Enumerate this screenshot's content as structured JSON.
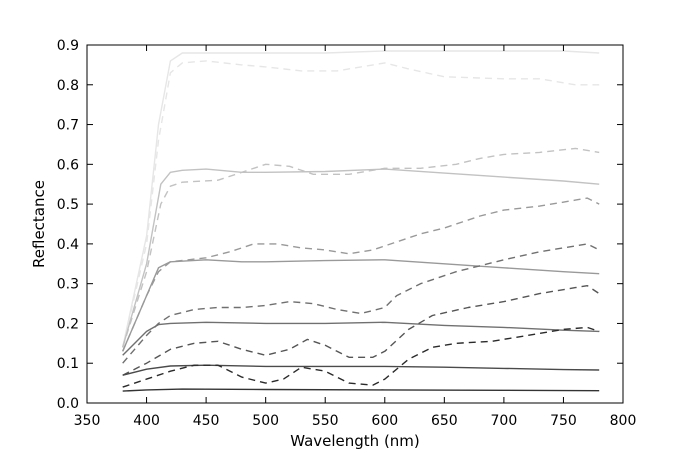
{
  "chart_data": {
    "type": "line",
    "title": "",
    "xlabel": "Wavelength (nm)",
    "ylabel": "Reflectance",
    "xlim": [
      350,
      800
    ],
    "ylim": [
      0.0,
      0.9
    ],
    "xticks": [
      350,
      400,
      450,
      500,
      550,
      600,
      650,
      700,
      750,
      800
    ],
    "yticks": [
      0.0,
      0.1,
      0.2,
      0.3,
      0.4,
      0.5,
      0.6,
      0.7,
      0.8,
      0.9
    ],
    "xtick_labels": [
      "350",
      "400",
      "450",
      "500",
      "550",
      "600",
      "650",
      "700",
      "750",
      "800"
    ],
    "ytick_labels": [
      "0.0",
      "0.1",
      "0.2",
      "0.3",
      "0.4",
      "0.5",
      "0.6",
      "0.7",
      "0.8",
      "0.9"
    ],
    "grid": false,
    "legend": "none",
    "series": [
      {
        "style": "solid",
        "color": "#e6e6e6",
        "points": [
          [
            380,
            0.14
          ],
          [
            400,
            0.42
          ],
          [
            410,
            0.7
          ],
          [
            420,
            0.86
          ],
          [
            430,
            0.88
          ],
          [
            450,
            0.88
          ],
          [
            500,
            0.88
          ],
          [
            550,
            0.88
          ],
          [
            600,
            0.885
          ],
          [
            650,
            0.885
          ],
          [
            700,
            0.885
          ],
          [
            750,
            0.885
          ],
          [
            780,
            0.88
          ]
        ]
      },
      {
        "style": "dashed",
        "color": "#e6e6e6",
        "points": [
          [
            380,
            0.14
          ],
          [
            400,
            0.4
          ],
          [
            410,
            0.66
          ],
          [
            420,
            0.83
          ],
          [
            430,
            0.855
          ],
          [
            450,
            0.86
          ],
          [
            480,
            0.85
          ],
          [
            500,
            0.845
          ],
          [
            530,
            0.835
          ],
          [
            560,
            0.835
          ],
          [
            580,
            0.845
          ],
          [
            600,
            0.855
          ],
          [
            620,
            0.84
          ],
          [
            650,
            0.82
          ],
          [
            700,
            0.815
          ],
          [
            730,
            0.815
          ],
          [
            760,
            0.8
          ],
          [
            780,
            0.8
          ]
        ]
      },
      {
        "style": "solid",
        "color": "#c2c2c2",
        "points": [
          [
            380,
            0.14
          ],
          [
            400,
            0.35
          ],
          [
            412,
            0.55
          ],
          [
            420,
            0.58
          ],
          [
            430,
            0.585
          ],
          [
            450,
            0.588
          ],
          [
            480,
            0.58
          ],
          [
            500,
            0.58
          ],
          [
            550,
            0.582
          ],
          [
            600,
            0.588
          ],
          [
            650,
            0.578
          ],
          [
            700,
            0.568
          ],
          [
            750,
            0.558
          ],
          [
            780,
            0.55
          ]
        ]
      },
      {
        "style": "dashed",
        "color": "#c2c2c2",
        "points": [
          [
            380,
            0.14
          ],
          [
            400,
            0.33
          ],
          [
            412,
            0.5
          ],
          [
            420,
            0.545
          ],
          [
            430,
            0.555
          ],
          [
            460,
            0.56
          ],
          [
            480,
            0.58
          ],
          [
            500,
            0.6
          ],
          [
            520,
            0.595
          ],
          [
            540,
            0.575
          ],
          [
            570,
            0.575
          ],
          [
            600,
            0.59
          ],
          [
            630,
            0.59
          ],
          [
            660,
            0.6
          ],
          [
            680,
            0.615
          ],
          [
            700,
            0.625
          ],
          [
            730,
            0.63
          ],
          [
            760,
            0.64
          ],
          [
            780,
            0.63
          ]
        ]
      },
      {
        "style": "solid",
        "color": "#999999",
        "points": [
          [
            380,
            0.13
          ],
          [
            400,
            0.27
          ],
          [
            410,
            0.34
          ],
          [
            420,
            0.355
          ],
          [
            450,
            0.36
          ],
          [
            480,
            0.355
          ],
          [
            500,
            0.355
          ],
          [
            550,
            0.358
          ],
          [
            600,
            0.36
          ],
          [
            650,
            0.35
          ],
          [
            700,
            0.34
          ],
          [
            750,
            0.33
          ],
          [
            780,
            0.325
          ]
        ]
      },
      {
        "style": "dashed",
        "color": "#999999",
        "points": [
          [
            380,
            0.13
          ],
          [
            400,
            0.27
          ],
          [
            410,
            0.33
          ],
          [
            420,
            0.355
          ],
          [
            450,
            0.365
          ],
          [
            470,
            0.38
          ],
          [
            490,
            0.4
          ],
          [
            510,
            0.4
          ],
          [
            530,
            0.39
          ],
          [
            550,
            0.385
          ],
          [
            570,
            0.375
          ],
          [
            590,
            0.385
          ],
          [
            610,
            0.405
          ],
          [
            630,
            0.425
          ],
          [
            650,
            0.44
          ],
          [
            680,
            0.47
          ],
          [
            700,
            0.485
          ],
          [
            730,
            0.495
          ],
          [
            760,
            0.51
          ],
          [
            770,
            0.515
          ],
          [
            780,
            0.5
          ]
        ]
      },
      {
        "style": "solid",
        "color": "#707070",
        "points": [
          [
            380,
            0.12
          ],
          [
            400,
            0.18
          ],
          [
            410,
            0.197
          ],
          [
            420,
            0.2
          ],
          [
            450,
            0.203
          ],
          [
            500,
            0.2
          ],
          [
            550,
            0.2
          ],
          [
            600,
            0.203
          ],
          [
            650,
            0.195
          ],
          [
            700,
            0.19
          ],
          [
            750,
            0.183
          ],
          [
            780,
            0.18
          ]
        ]
      },
      {
        "style": "dashed",
        "color": "#707070",
        "points": [
          [
            380,
            0.1
          ],
          [
            400,
            0.17
          ],
          [
            410,
            0.2
          ],
          [
            420,
            0.22
          ],
          [
            440,
            0.235
          ],
          [
            460,
            0.24
          ],
          [
            480,
            0.24
          ],
          [
            500,
            0.245
          ],
          [
            520,
            0.255
          ],
          [
            540,
            0.25
          ],
          [
            560,
            0.235
          ],
          [
            580,
            0.225
          ],
          [
            600,
            0.24
          ],
          [
            610,
            0.27
          ],
          [
            630,
            0.3
          ],
          [
            660,
            0.33
          ],
          [
            700,
            0.36
          ],
          [
            730,
            0.38
          ],
          [
            760,
            0.395
          ],
          [
            770,
            0.4
          ],
          [
            780,
            0.385
          ]
        ]
      },
      {
        "style": "dashed",
        "color": "#555555",
        "points": [
          [
            380,
            0.07
          ],
          [
            400,
            0.1
          ],
          [
            420,
            0.135
          ],
          [
            440,
            0.15
          ],
          [
            460,
            0.155
          ],
          [
            480,
            0.135
          ],
          [
            500,
            0.12
          ],
          [
            520,
            0.135
          ],
          [
            535,
            0.16
          ],
          [
            550,
            0.145
          ],
          [
            570,
            0.115
          ],
          [
            590,
            0.115
          ],
          [
            600,
            0.13
          ],
          [
            620,
            0.185
          ],
          [
            640,
            0.22
          ],
          [
            670,
            0.24
          ],
          [
            700,
            0.255
          ],
          [
            730,
            0.275
          ],
          [
            760,
            0.29
          ],
          [
            770,
            0.295
          ],
          [
            780,
            0.275
          ]
        ]
      },
      {
        "style": "solid",
        "color": "#4a4a4a",
        "points": [
          [
            380,
            0.07
          ],
          [
            400,
            0.085
          ],
          [
            420,
            0.093
          ],
          [
            450,
            0.095
          ],
          [
            500,
            0.092
          ],
          [
            550,
            0.092
          ],
          [
            600,
            0.092
          ],
          [
            650,
            0.09
          ],
          [
            700,
            0.087
          ],
          [
            750,
            0.084
          ],
          [
            780,
            0.083
          ]
        ]
      },
      {
        "style": "dashed",
        "color": "#2a2a2a",
        "points": [
          [
            380,
            0.04
          ],
          [
            400,
            0.06
          ],
          [
            420,
            0.08
          ],
          [
            440,
            0.095
          ],
          [
            460,
            0.095
          ],
          [
            480,
            0.065
          ],
          [
            500,
            0.05
          ],
          [
            515,
            0.06
          ],
          [
            530,
            0.09
          ],
          [
            550,
            0.08
          ],
          [
            570,
            0.05
          ],
          [
            590,
            0.045
          ],
          [
            600,
            0.06
          ],
          [
            620,
            0.11
          ],
          [
            640,
            0.14
          ],
          [
            660,
            0.15
          ],
          [
            690,
            0.155
          ],
          [
            720,
            0.17
          ],
          [
            750,
            0.185
          ],
          [
            770,
            0.19
          ],
          [
            780,
            0.18
          ]
        ]
      },
      {
        "style": "solid",
        "color": "#333333",
        "points": [
          [
            380,
            0.03
          ],
          [
            400,
            0.033
          ],
          [
            430,
            0.035
          ],
          [
            500,
            0.034
          ],
          [
            600,
            0.033
          ],
          [
            700,
            0.032
          ],
          [
            780,
            0.031
          ]
        ]
      }
    ]
  }
}
